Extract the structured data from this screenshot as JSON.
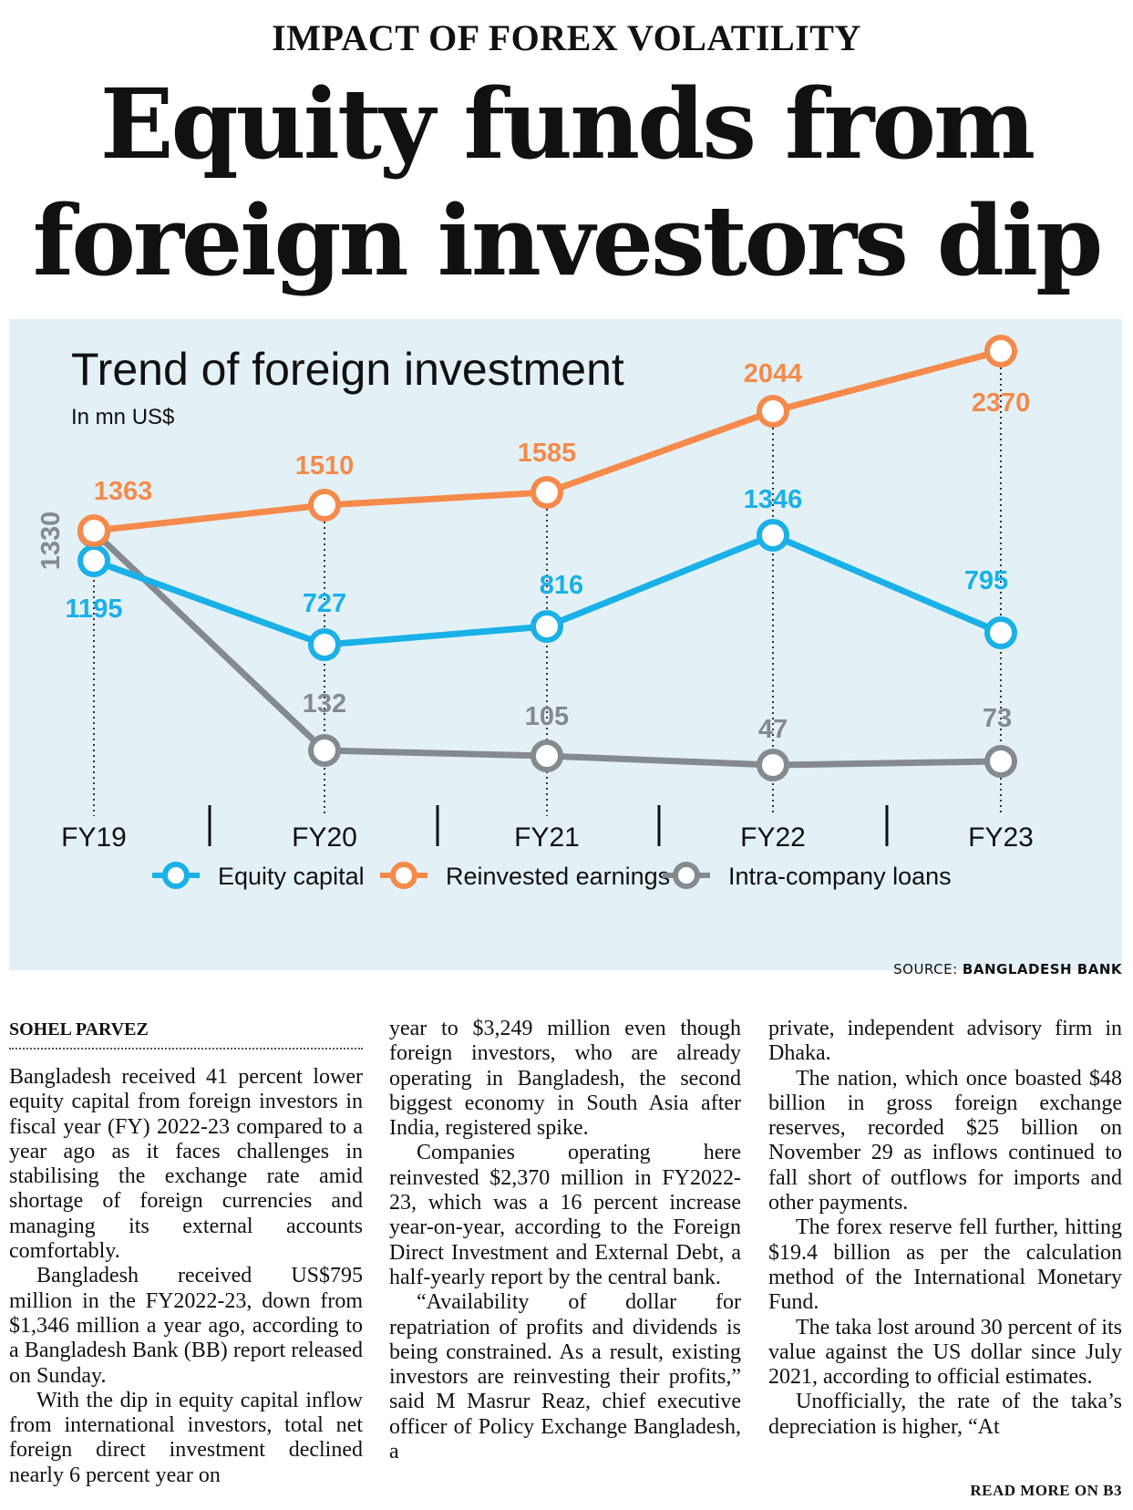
{
  "kicker": "IMPACT OF FOREX VOLATILITY",
  "headline": {
    "line1": "Equity funds from",
    "line2": "foreign investors dip"
  },
  "chart_data": {
    "type": "line",
    "title": "Trend of foreign investment",
    "subtitle": "In mn US$",
    "categories": [
      "FY19",
      "FY20",
      "FY21",
      "FY22",
      "FY23"
    ],
    "series": [
      {
        "name": "Equity capital",
        "color": "#1ab0e8",
        "values": [
          1195,
          727,
          816,
          1346,
          795
        ]
      },
      {
        "name": "Reinvested earnings",
        "color": "#f58a4b",
        "values": [
          1363,
          1510,
          1585,
          2044,
          2370
        ]
      },
      {
        "name": "Intra-company loans",
        "color": "#858a8f",
        "values": [
          1330,
          132,
          105,
          47,
          73
        ]
      }
    ],
    "legend_position": "bottom",
    "source_label": "SOURCE:",
    "source_name": "BANGLADESH BANK"
  },
  "byline": "SOHEL PARVEZ",
  "article": {
    "col1": [
      "Bangladesh received 41 percent lower equity capital from foreign investors in fiscal year (FY) 2022-23 compared to a year ago as it faces challenges in stabilising the exchange rate amid shortage of foreign currencies and managing its external accounts comfortably.",
      "Bangladesh received US$795 million in the FY2022-23, down from $1,346 million a year ago, according to a Bangladesh Bank (BB) report released on Sunday.",
      "With the dip in equity capital inflow from international investors, total net foreign direct investment declined nearly 6 percent year on"
    ],
    "col2": [
      "year to $3,249 million even though foreign investors, who are already operating in Bangladesh, the second biggest economy in South Asia after India, registered spike.",
      "Companies operating here reinvested $2,370 million in FY2022-23, which was a 16 percent increase year-on-year, according to the Foreign Direct Investment and External Debt, a half-yearly report by the central bank.",
      "“Availability of dollar for repatriation of profits and dividends is being constrained. As a result, existing investors are reinvesting their profits,” said M Masrur Reaz, chief executive officer of Policy Exchange Bangladesh, a"
    ],
    "col3": [
      "private, independent advisory firm in Dhaka.",
      "The nation, which once boasted $48 billion in gross foreign exchange reserves, recorded $25 billion on November 29 as inflows continued to fall short of outflows for imports and other payments.",
      "The forex reserve fell further, hitting $19.4 billion as per the calculation method of the International Monetary Fund.",
      "The taka lost around 30 percent of its value against the US dollar since July 2021, according to official estimates.",
      "Unofficially, the rate of the taka’s depreciation is higher, “At"
    ]
  },
  "read_more": "READ MORE ON B3"
}
